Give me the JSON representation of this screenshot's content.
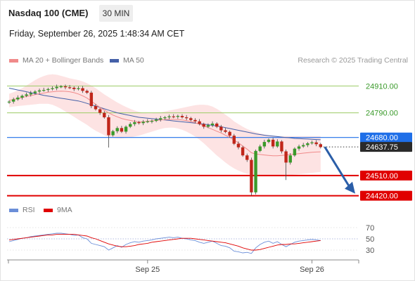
{
  "header": {
    "instrument": "Nasdaq 100 (CME)",
    "interval": "30 MIN",
    "timestamp": "Friday, September 26, 2025 1:48:34 AM CET"
  },
  "legend": {
    "bollinger": "MA 20 + Bollinger Bands",
    "ma50": "MA 50",
    "copyright": "Research © 2025 Trading Central",
    "rsi": "RSI",
    "rsi_ma": "9MA"
  },
  "colors": {
    "bollinger": "#f08a8a",
    "band_fill": "#fde3e3",
    "ma50": "#4460a8",
    "resistance": "#9ccc65",
    "pivot": "#1f6fe8",
    "support": "#e00000",
    "arrow": "#2b5ea8",
    "candle_up": "#3a9a2a",
    "candle_down": "#c0261a",
    "rsi": "#6a8ed8",
    "rsi_ma": "#e00000"
  },
  "chart_data": [
    {
      "type": "candlestick",
      "ylim": [
        24400,
        24980
      ],
      "x_tick_labels": [
        "Sep 25",
        "Sep 26"
      ],
      "grid": false,
      "current_price": "24637.75",
      "levels": [
        {
          "value": 24910,
          "label": "24910.00",
          "kind": "resistance"
        },
        {
          "value": 24790,
          "label": "24790.00",
          "kind": "resistance"
        },
        {
          "value": 24680,
          "label": "24680.00",
          "kind": "pivot"
        },
        {
          "value": 24510,
          "label": "24510.00",
          "kind": "support"
        },
        {
          "value": 24420,
          "label": "24420.00",
          "kind": "support"
        }
      ],
      "closes": [
        24840,
        24850,
        24858,
        24866,
        24872,
        24878,
        24885,
        24890,
        24892,
        24896,
        24900,
        24906,
        24908,
        24904,
        24902,
        24896,
        24900,
        24888,
        24880,
        24820,
        24806,
        24790,
        24770,
        24690,
        24708,
        24722,
        24706,
        24728,
        24740,
        24748,
        24744,
        24750,
        24752,
        24754,
        24760,
        24766,
        24770,
        24774,
        24772,
        24776,
        24770,
        24766,
        24758,
        24752,
        24740,
        24728,
        24735,
        24742,
        24728,
        24712,
        24705,
        24688,
        24652,
        24636,
        24600,
        24580,
        24435,
        24620,
        24640,
        24660,
        24670,
        24640,
        24662,
        24618,
        24568,
        24600,
        24630,
        24640,
        24646,
        24654,
        24658,
        24650,
        24637
      ],
      "bollinger_mid": [
        24845,
        24850,
        24854,
        24858,
        24863,
        24867,
        24871,
        24875,
        24878,
        24882,
        24884,
        24886,
        24887,
        24886,
        24884,
        24880,
        24874,
        24866,
        24856,
        24842,
        24828,
        24814,
        24802,
        24790,
        24780,
        24772,
        24765,
        24760,
        24756,
        24752,
        24750,
        24750,
        24752,
        24754,
        24756,
        24758,
        24760,
        24761,
        24761,
        24760,
        24758,
        24755,
        24751,
        24746,
        24740,
        24732,
        24724,
        24716,
        24708,
        24700,
        24690,
        24680,
        24668,
        24656,
        24642,
        24628,
        24612,
        24606,
        24604,
        24602,
        24600,
        24598,
        24598,
        24600,
        24602,
        24604,
        24606,
        24608,
        24610,
        24612,
        24614,
        24615,
        24616
      ],
      "bollinger_upper": [
        24875,
        24882,
        24890,
        24900,
        24912,
        24924,
        24936,
        24946,
        24954,
        24960,
        24962,
        24960,
        24955,
        24950,
        24944,
        24940,
        24936,
        24930,
        24922,
        24912,
        24900,
        24886,
        24872,
        24860,
        24848,
        24836,
        24826,
        24816,
        24808,
        24800,
        24794,
        24790,
        24788,
        24788,
        24790,
        24792,
        24796,
        24800,
        24804,
        24808,
        24812,
        24816,
        24820,
        24824,
        24826,
        24826,
        24824,
        24818,
        24808,
        24796,
        24782,
        24768,
        24752,
        24740,
        24728,
        24718,
        24710,
        24704,
        24698,
        24694,
        24690,
        24688,
        24686,
        24686,
        24686,
        24686,
        24686,
        24686,
        24686,
        24686,
        24686,
        24686,
        24686
      ],
      "bollinger_lower": [
        24815,
        24818,
        24820,
        24822,
        24824,
        24826,
        24828,
        24830,
        24830,
        24830,
        24826,
        24818,
        24808,
        24796,
        24784,
        24772,
        24760,
        24748,
        24736,
        24722,
        24710,
        24700,
        24690,
        24682,
        24678,
        24676,
        24676,
        24678,
        24680,
        24684,
        24688,
        24694,
        24700,
        24706,
        24712,
        24718,
        24722,
        24724,
        24724,
        24720,
        24714,
        24706,
        24696,
        24684,
        24670,
        24654,
        24636,
        24618,
        24600,
        24584,
        24568,
        24554,
        24542,
        24532,
        24524,
        24518,
        24514,
        24512,
        24510,
        24508,
        24508,
        24508,
        24508,
        24508,
        24510,
        24512,
        24514,
        24516,
        24518,
        24520,
        24522,
        24524,
        24526
      ],
      "ma50": [
        24900,
        24896,
        24892,
        24888,
        24884,
        24880,
        24876,
        24872,
        24868,
        24865,
        24862,
        24858,
        24855,
        24852,
        24849,
        24846,
        24843,
        24838,
        24832,
        24826,
        24820,
        24814,
        24808,
        24802,
        24796,
        24790,
        24786,
        24782,
        24778,
        24774,
        24770,
        24768,
        24766,
        24764,
        24762,
        24760,
        24758,
        24756,
        24754,
        24752,
        24750,
        24748,
        24746,
        24744,
        24742,
        24740,
        24737,
        24734,
        24731,
        24728,
        24724,
        24720,
        24716,
        24712,
        24708,
        24704,
        24700,
        24696,
        24693,
        24690,
        24688,
        24686,
        24684,
        24682,
        24680,
        24678,
        24676,
        24675,
        24674,
        24673,
        24672,
        24671,
        24670
      ]
    },
    {
      "type": "line",
      "name": "RSI",
      "ylim": [
        20,
        80
      ],
      "y_ticks": [
        30,
        50,
        70
      ],
      "rsi": [
        45,
        47,
        49,
        51,
        52,
        54,
        55,
        56,
        57,
        58,
        59,
        60,
        60,
        59,
        58,
        56,
        57,
        52,
        50,
        42,
        40,
        38,
        36,
        30,
        34,
        38,
        35,
        40,
        43,
        45,
        44,
        46,
        47,
        48,
        50,
        51,
        52,
        53,
        52,
        53,
        51,
        50,
        48,
        47,
        44,
        42,
        44,
        46,
        42,
        38,
        37,
        34,
        28,
        27,
        25,
        26,
        24,
        34,
        40,
        44,
        46,
        42,
        45,
        40,
        36,
        40,
        44,
        46,
        47,
        48,
        49,
        48,
        47
      ],
      "rsi_ma": [
        48,
        49,
        50,
        51,
        52,
        53,
        54,
        55,
        56,
        57,
        57,
        58,
        58,
        58,
        58,
        58,
        57,
        56,
        55,
        52,
        50,
        47,
        44,
        41,
        39,
        37,
        36,
        36,
        37,
        38,
        40,
        41,
        42,
        44,
        45,
        46,
        47,
        48,
        49,
        50,
        51,
        51,
        51,
        50,
        49,
        48,
        47,
        46,
        45,
        44,
        43,
        41,
        39,
        37,
        34,
        32,
        30,
        30,
        31,
        33,
        35,
        37,
        39,
        40,
        40,
        41,
        41,
        42,
        43,
        44,
        45,
        46,
        47
      ]
    }
  ]
}
